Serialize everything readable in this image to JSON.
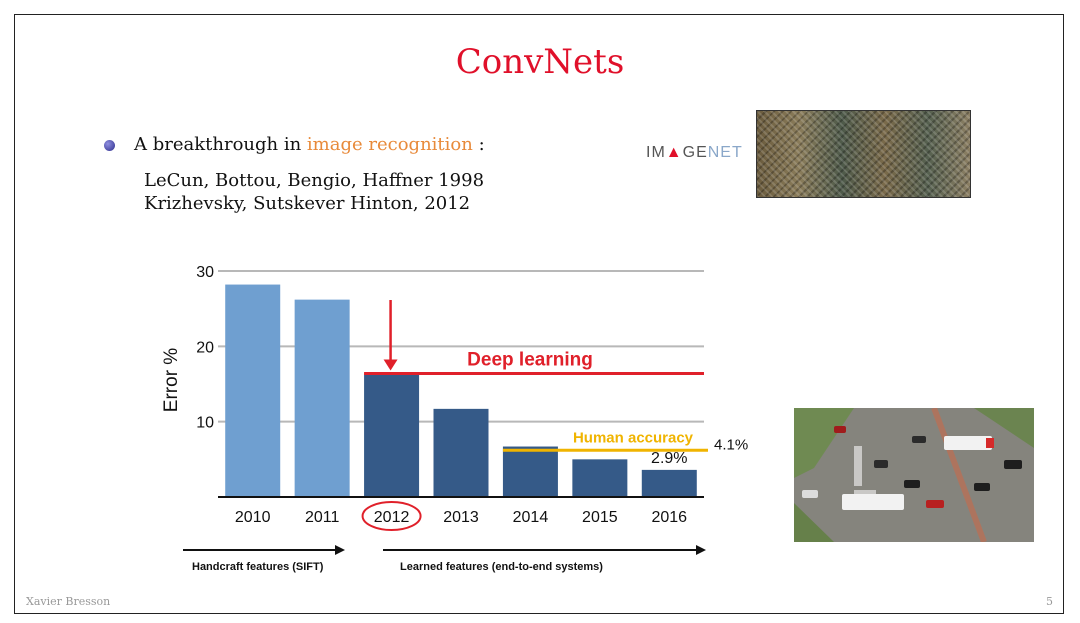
{
  "slide": {
    "title": "ConvNets",
    "bullet": {
      "prefix": "A breakthrough in ",
      "highlight": "image recognition",
      "suffix": " :"
    },
    "references": [
      "LeCun, Bottou, Bengio, Haffner 1998",
      "Krizhevsky, Sutskever Hinton, 2012"
    ],
    "imagenet_logo": {
      "left": "IM",
      "mark": "▲",
      "mid": "GE",
      "right": "NET"
    },
    "footer": {
      "author": "Xavier Bresson",
      "page": "5"
    }
  },
  "chart_data": {
    "type": "bar",
    "categories": [
      "2010",
      "2011",
      "2012",
      "2013",
      "2014",
      "2015",
      "2016"
    ],
    "values": [
      28.2,
      26.2,
      16.4,
      11.7,
      6.7,
      5.0,
      3.6
    ],
    "bar_colors": [
      "#6f9fd0",
      "#6f9fd0",
      "#355a88",
      "#355a88",
      "#355a88",
      "#355a88",
      "#355a88"
    ],
    "ylabel": "Error %",
    "ylim": [
      0,
      30
    ],
    "yticks": [
      10,
      20,
      30
    ],
    "grid": true,
    "annotations": {
      "deep_learning": {
        "label": "Deep learning",
        "y": 16.4,
        "from_category": "2012",
        "color": "#e0202a"
      },
      "human_accuracy": {
        "label": "Human accuracy",
        "y": 6.2,
        "from_category": "2014",
        "color": "#f0b400"
      },
      "value_labels": [
        {
          "text": "4.1%"
        },
        {
          "text": "2.9%"
        }
      ],
      "circled_category": "2012",
      "arrow_category": "2012"
    },
    "eras": [
      {
        "label": "Handcraft features (SIFT)"
      },
      {
        "label": "Learned features (end-to-end systems)"
      }
    ]
  }
}
